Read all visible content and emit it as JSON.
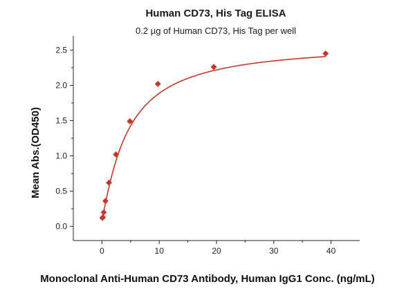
{
  "chart_data": {
    "type": "scatter",
    "title": "Human CD73, His Tag ELISA",
    "subtitle": "0.2 µg of Human CD73, His Tag per well",
    "xlabel": "Monoclonal Anti-Human CD73 Antibody, Human IgG1 Conc. (ng/mL)",
    "ylabel": "Mean Abs.(OD450)",
    "xlim": [
      -5,
      45
    ],
    "ylim": [
      -0.2,
      2.7
    ],
    "x_ticks": [
      0,
      10,
      20,
      30,
      40
    ],
    "y_ticks": [
      0.0,
      0.5,
      1.0,
      1.5,
      2.0,
      2.5
    ],
    "x_tick_labels": [
      "0",
      "10",
      "20",
      "30",
      "40"
    ],
    "y_tick_labels": [
      "0.0",
      "0.5",
      "1.0",
      "1.5",
      "2.0",
      "2.5"
    ],
    "grid": false,
    "colors": {
      "series": "#c0392b",
      "axis": "#222222"
    },
    "series": [
      {
        "x": [
          0.08,
          0.15,
          0.31,
          0.61,
          1.22,
          2.44,
          4.88,
          9.77,
          19.53,
          39.06
        ],
        "y": [
          0.12,
          0.13,
          0.2,
          0.36,
          0.62,
          1.02,
          1.49,
          2.02,
          2.26,
          2.45
        ]
      }
    ],
    "fit": {
      "model": "four-parameter logistic",
      "bottom": 0.1,
      "top": 2.6,
      "ec50": 4.5,
      "hill": 1.15
    }
  }
}
